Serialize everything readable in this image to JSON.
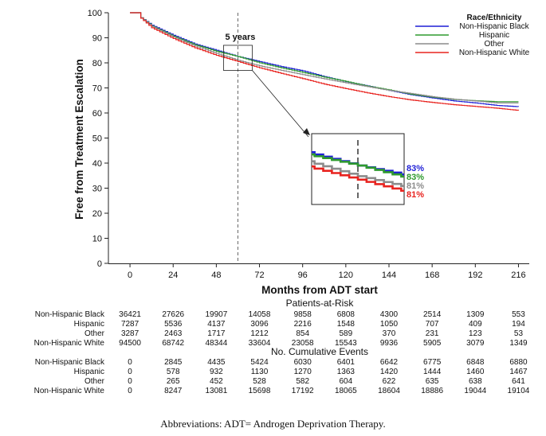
{
  "chart_data": {
    "type": "line",
    "subtype": "kaplan-meier",
    "xlabel": "Months from ADT start",
    "ylabel": "Free from Treatment Escalation",
    "xlim": [
      -12,
      222
    ],
    "ylim": [
      0,
      100
    ],
    "x_ticks": [
      0,
      24,
      48,
      72,
      96,
      120,
      144,
      168,
      192,
      216
    ],
    "y_ticks": [
      0,
      10,
      20,
      30,
      40,
      50,
      60,
      70,
      80,
      90,
      100
    ],
    "reference_line": {
      "x": 60,
      "label": "5 years",
      "style": "dashed"
    },
    "legend": {
      "title": "Race/Ethnicity",
      "position": "top-right"
    },
    "series": [
      {
        "name": "Non-Hispanic Black",
        "color": "#1f1fd6",
        "x": [
          0,
          4,
          6,
          12,
          24,
          36,
          48,
          60,
          72,
          84,
          96,
          108,
          120,
          132,
          144,
          156,
          168,
          180,
          192,
          204,
          216
        ],
        "y": [
          100,
          100,
          98,
          95,
          91,
          87.5,
          85,
          82.5,
          80.5,
          78.5,
          76.8,
          74.5,
          72.5,
          70.8,
          69,
          67.3,
          66,
          64.8,
          64,
          63,
          62.5
        ]
      },
      {
        "name": "Hispanic",
        "color": "#2e9a2e",
        "x": [
          0,
          4,
          6,
          12,
          24,
          36,
          48,
          60,
          72,
          84,
          96,
          108,
          120,
          132,
          144,
          156,
          168,
          180,
          192,
          204,
          216
        ],
        "y": [
          100,
          100,
          98,
          94.7,
          90.6,
          87.2,
          84.6,
          82.5,
          80,
          78,
          76.2,
          74.3,
          72.6,
          70.7,
          69.2,
          67.5,
          66.3,
          65.4,
          64.9,
          64.5,
          64.5
        ]
      },
      {
        "name": "Other",
        "color": "#8c8c8c",
        "x": [
          0,
          4,
          6,
          12,
          24,
          36,
          48,
          60,
          72,
          84,
          96,
          108,
          120,
          132,
          144,
          156,
          168,
          180,
          192,
          204,
          216
        ],
        "y": [
          100,
          100,
          98,
          94.5,
          90.3,
          86.7,
          83.8,
          81,
          78.8,
          77,
          75.3,
          73.6,
          72,
          70.5,
          69,
          67.8,
          66.5,
          65.5,
          64.8,
          64,
          64
        ]
      },
      {
        "name": "Non-Hispanic White",
        "color": "#e8231f",
        "x": [
          0,
          4,
          6,
          12,
          24,
          36,
          48,
          60,
          72,
          84,
          96,
          108,
          120,
          132,
          144,
          156,
          168,
          180,
          192,
          204,
          216
        ],
        "y": [
          100,
          100,
          97.8,
          94,
          89.7,
          86,
          83,
          80.5,
          78,
          75.8,
          73.7,
          71.5,
          69.7,
          68,
          66.5,
          65.2,
          64.2,
          63.3,
          62.6,
          61.9,
          61
        ]
      }
    ],
    "inset": {
      "x_range": [
        52,
        68
      ],
      "y_range": [
        77,
        87
      ],
      "labels": [
        {
          "series": "Non-Hispanic Black",
          "value": "83%",
          "color": "#1f1fd6"
        },
        {
          "series": "Hispanic",
          "value": "83%",
          "color": "#2e9a2e"
        },
        {
          "series": "Other",
          "value": "81%",
          "color": "#8c8c8c"
        },
        {
          "series": "Non-Hispanic White",
          "value": "81%",
          "color": "#e8231f"
        }
      ]
    },
    "risk_table": {
      "at_risk_title": "Patients-at-Risk",
      "events_title": "No. Cumulative Events",
      "at_risk": [
        {
          "group": "Non-Hispanic Black",
          "values": [
            "36421",
            "27626",
            "19907",
            "14058",
            "9858",
            "6808",
            "4300",
            "2514",
            "1309",
            "553"
          ]
        },
        {
          "group": "Hispanic",
          "values": [
            "7287",
            "5536",
            "4137",
            "3096",
            "2216",
            "1548",
            "1050",
            "707",
            "409",
            "194"
          ]
        },
        {
          "group": "Other",
          "values": [
            "3287",
            "2463",
            "1717",
            "1212",
            "854",
            "589",
            "370",
            "231",
            "123",
            "53"
          ]
        },
        {
          "group": "Non-Hispanic White",
          "values": [
            "94500",
            "68742",
            "48344",
            "33604",
            "23058",
            "15543",
            "9936",
            "5905",
            "3079",
            "1349"
          ]
        }
      ],
      "events": [
        {
          "group": "Non-Hispanic Black",
          "values": [
            "0",
            "2845",
            "4435",
            "5424",
            "6030",
            "6401",
            "6642",
            "6775",
            "6848",
            "6880"
          ]
        },
        {
          "group": "Hispanic",
          "values": [
            "0",
            "578",
            "932",
            "1130",
            "1270",
            "1363",
            "1420",
            "1444",
            "1460",
            "1467"
          ]
        },
        {
          "group": "Other",
          "values": [
            "0",
            "265",
            "452",
            "528",
            "582",
            "604",
            "622",
            "635",
            "638",
            "641"
          ]
        },
        {
          "group": "Non-Hispanic White",
          "values": [
            "0",
            "8247",
            "13081",
            "15698",
            "17192",
            "18065",
            "18604",
            "18886",
            "19044",
            "19104"
          ]
        }
      ]
    }
  },
  "caption": "Abbreviations: ADT= Androgen Deprivation Therapy."
}
